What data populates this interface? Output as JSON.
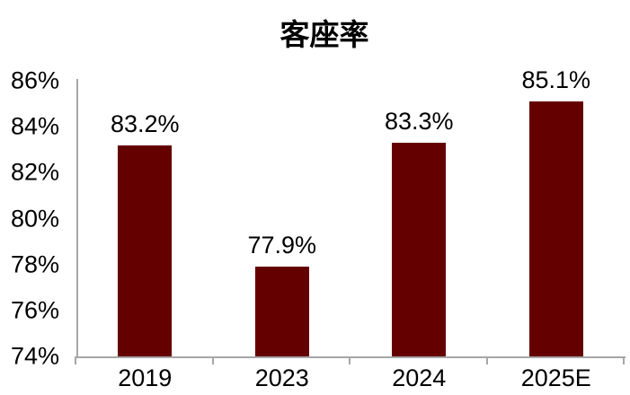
{
  "chart_data": {
    "type": "bar",
    "title": "客座率",
    "categories": [
      "2019",
      "2023",
      "2024",
      "2025E"
    ],
    "values": [
      83.2,
      77.9,
      83.3,
      85.1
    ],
    "data_labels": [
      "83.2%",
      "77.9%",
      "83.3%",
      "85.1%"
    ],
    "ylim": [
      74,
      86
    ],
    "ytick_step": 2,
    "ytick_labels": [
      "74%",
      "76%",
      "78%",
      "80%",
      "82%",
      "84%",
      "86%"
    ],
    "xlabel": "",
    "ylabel": "",
    "grid": false,
    "legend_position": "none",
    "colors": {
      "bar": "#640000",
      "axis": "#a6a6a6",
      "text": "#000000",
      "background": "#ffffff"
    }
  }
}
